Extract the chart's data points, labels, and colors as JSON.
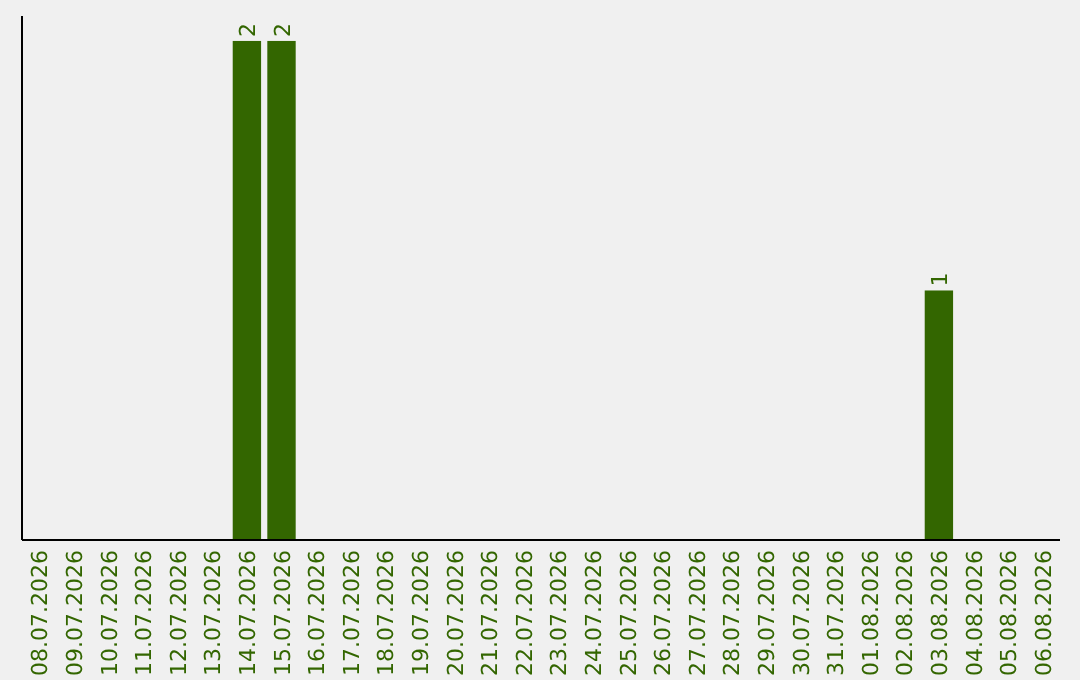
{
  "chart_data": {
    "type": "bar",
    "categories": [
      "08.07.2026",
      "09.07.2026",
      "10.07.2026",
      "11.07.2026",
      "12.07.2026",
      "13.07.2026",
      "14.07.2026",
      "15.07.2026",
      "16.07.2026",
      "17.07.2026",
      "18.07.2026",
      "19.07.2026",
      "20.07.2026",
      "21.07.2026",
      "22.07.2026",
      "23.07.2026",
      "24.07.2026",
      "25.07.2026",
      "26.07.2026",
      "27.07.2026",
      "28.07.2026",
      "29.07.2026",
      "30.07.2026",
      "31.07.2026",
      "01.08.2026",
      "02.08.2026",
      "03.08.2026",
      "04.08.2026",
      "05.08.2026",
      "06.08.2026"
    ],
    "values": [
      0,
      0,
      0,
      0,
      0,
      0,
      2,
      2,
      0,
      0,
      0,
      0,
      0,
      0,
      0,
      0,
      0,
      0,
      0,
      0,
      0,
      0,
      0,
      0,
      0,
      0,
      1,
      0,
      0,
      0
    ],
    "value_labels": [
      null,
      null,
      null,
      null,
      null,
      null,
      "2",
      "2",
      null,
      null,
      null,
      null,
      null,
      null,
      null,
      null,
      null,
      null,
      null,
      null,
      null,
      null,
      null,
      null,
      null,
      null,
      "1",
      null,
      null,
      null
    ],
    "color": "#336600",
    "tick_labels": "x"
  }
}
